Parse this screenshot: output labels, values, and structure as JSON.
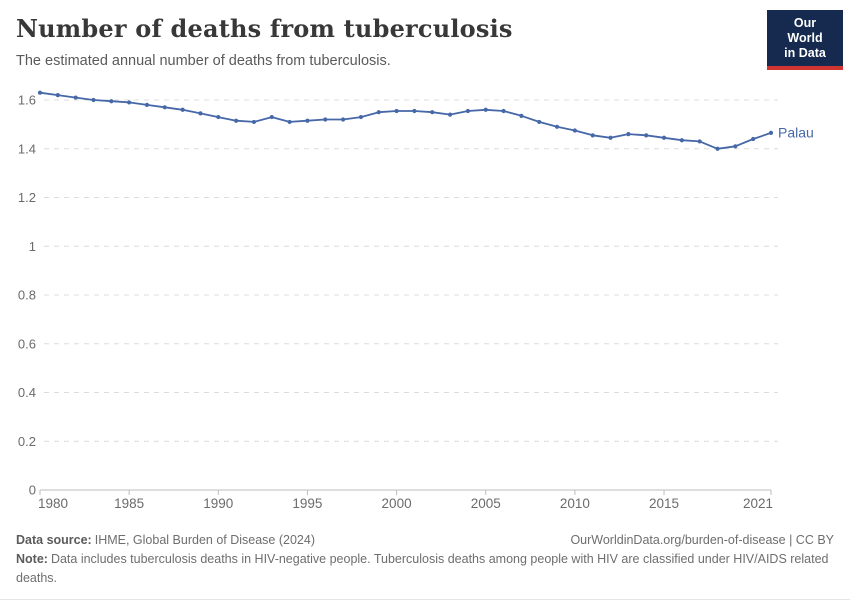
{
  "header": {
    "title": "Number of deaths from tuberculosis",
    "subtitle": "The estimated annual number of deaths from tuberculosis.",
    "logo": {
      "line1": "Our World",
      "line2": "in Data"
    }
  },
  "colors": {
    "series_blue": "#4668a8",
    "logo_navy": "#152a4e",
    "logo_red": "#d13532",
    "gridline": "#dcdcdc",
    "axis": "#bdbdbd",
    "tick_label": "#6b6b6b"
  },
  "chart_data": {
    "type": "line",
    "title": "Number of deaths from tuberculosis",
    "xlabel": "",
    "ylabel": "",
    "xlim": [
      1980,
      2021
    ],
    "ylim": [
      0,
      1.6
    ],
    "grid": true,
    "legend_position": "end-of-line",
    "x_ticks": [
      1980,
      1985,
      1990,
      1995,
      2000,
      2005,
      2010,
      2015,
      2021
    ],
    "y_ticks": [
      0,
      0.2,
      0.4,
      0.6,
      0.8,
      1,
      1.2,
      1.4,
      1.6
    ],
    "end_label": "Palau",
    "series": [
      {
        "name": "Palau",
        "color": "#4668a8",
        "x": [
          1980,
          1981,
          1982,
          1983,
          1984,
          1985,
          1986,
          1987,
          1988,
          1989,
          1990,
          1991,
          1992,
          1993,
          1994,
          1995,
          1996,
          1997,
          1998,
          1999,
          2000,
          2001,
          2002,
          2003,
          2004,
          2005,
          2006,
          2007,
          2008,
          2009,
          2010,
          2011,
          2012,
          2013,
          2014,
          2015,
          2016,
          2017,
          2018,
          2019,
          2020,
          2021
        ],
        "values": [
          1.63,
          1.62,
          1.61,
          1.6,
          1.595,
          1.59,
          1.58,
          1.57,
          1.56,
          1.545,
          1.53,
          1.515,
          1.51,
          1.53,
          1.51,
          1.515,
          1.52,
          1.52,
          1.53,
          1.55,
          1.555,
          1.555,
          1.55,
          1.54,
          1.555,
          1.56,
          1.555,
          1.535,
          1.51,
          1.49,
          1.475,
          1.455,
          1.445,
          1.46,
          1.455,
          1.445,
          1.435,
          1.43,
          1.4,
          1.41,
          1.44,
          1.465
        ]
      }
    ]
  },
  "footer": {
    "source_label": "Data source:",
    "source_text": "IHME, Global Burden of Disease (2024)",
    "rights": "OurWorldinData.org/burden-of-disease | CC BY",
    "note_label": "Note:",
    "note_text": "Data includes tuberculosis deaths in HIV-negative people. Tuberculosis deaths among people with HIV are classified under HIV/AIDS related deaths."
  }
}
